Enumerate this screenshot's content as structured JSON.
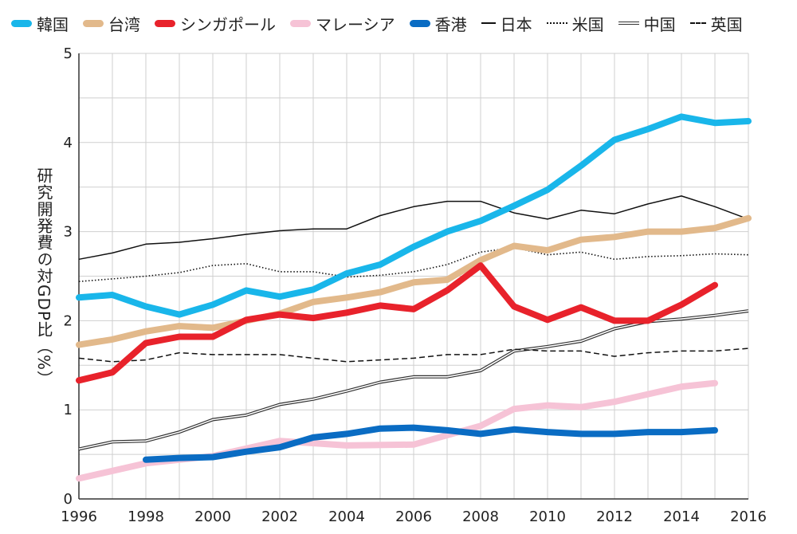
{
  "chart_data": {
    "type": "line",
    "title": "",
    "xlabel": "",
    "ylabel": "研究開発費の対GDP比（%）",
    "xlim": [
      1996,
      2016
    ],
    "ylim": [
      0,
      5
    ],
    "xticks": [
      1996,
      1998,
      2000,
      2002,
      2004,
      2006,
      2008,
      2010,
      2012,
      2014,
      2016
    ],
    "yticks": [
      0,
      1,
      2,
      3,
      4,
      5
    ],
    "grid": true,
    "legend_position": "top",
    "series": [
      {
        "name": "韓国",
        "color": "#19b6ea",
        "style": "thick",
        "x": [
          1996,
          1997,
          1998,
          1999,
          2000,
          2001,
          2002,
          2003,
          2004,
          2005,
          2006,
          2007,
          2008,
          2009,
          2010,
          2011,
          2012,
          2013,
          2014,
          2015,
          2016
        ],
        "y": [
          2.26,
          2.29,
          2.16,
          2.07,
          2.18,
          2.34,
          2.27,
          2.35,
          2.53,
          2.63,
          2.83,
          3.0,
          3.12,
          3.29,
          3.47,
          3.74,
          4.03,
          4.15,
          4.29,
          4.22,
          4.24
        ]
      },
      {
        "name": "台湾",
        "color": "#e2b98b",
        "style": "thick",
        "x": [
          1996,
          1997,
          1998,
          1999,
          2000,
          2001,
          2002,
          2003,
          2004,
          2005,
          2006,
          2007,
          2008,
          2009,
          2010,
          2011,
          2012,
          2013,
          2014,
          2015,
          2016
        ],
        "y": [
          1.73,
          1.79,
          1.88,
          1.94,
          1.92,
          2.0,
          2.08,
          2.21,
          2.26,
          2.32,
          2.43,
          2.46,
          2.68,
          2.84,
          2.79,
          2.91,
          2.94,
          3.0,
          3.0,
          3.04,
          3.15
        ]
      },
      {
        "name": "シンガポール",
        "color": "#e8222b",
        "style": "thick",
        "x": [
          1996,
          1997,
          1998,
          1999,
          2000,
          2001,
          2002,
          2003,
          2004,
          2005,
          2006,
          2007,
          2008,
          2009,
          2010,
          2011,
          2012,
          2013,
          2014,
          2015
        ],
        "y": [
          1.33,
          1.42,
          1.75,
          1.82,
          1.82,
          2.01,
          2.07,
          2.03,
          2.09,
          2.17,
          2.13,
          2.34,
          2.62,
          2.16,
          2.01,
          2.15,
          2.0,
          2.0,
          2.18,
          2.4
        ]
      },
      {
        "name": "マレーシア",
        "color": "#f6c3d6",
        "style": "thick",
        "x": [
          1996,
          1998,
          2000,
          2002,
          2004,
          2006,
          2008,
          2009,
          2010,
          2011,
          2012,
          2014,
          2015
        ],
        "y": [
          0.23,
          0.4,
          0.48,
          0.65,
          0.6,
          0.61,
          0.82,
          1.01,
          1.05,
          1.03,
          1.09,
          1.26,
          1.3
        ]
      },
      {
        "name": "香港",
        "color": "#0a6cc3",
        "style": "thick",
        "x": [
          1998,
          1999,
          2000,
          2001,
          2002,
          2003,
          2004,
          2005,
          2006,
          2007,
          2008,
          2009,
          2010,
          2011,
          2012,
          2013,
          2014,
          2015
        ],
        "y": [
          0.44,
          0.46,
          0.47,
          0.53,
          0.58,
          0.69,
          0.73,
          0.79,
          0.8,
          0.77,
          0.73,
          0.78,
          0.75,
          0.73,
          0.73,
          0.75,
          0.75,
          0.77
        ]
      },
      {
        "name": "日本",
        "color": "#111111",
        "style": "solid",
        "x": [
          1996,
          1997,
          1998,
          1999,
          2000,
          2001,
          2002,
          2003,
          2004,
          2005,
          2006,
          2007,
          2008,
          2009,
          2010,
          2011,
          2012,
          2013,
          2014,
          2015,
          2016
        ],
        "y": [
          2.69,
          2.76,
          2.86,
          2.88,
          2.92,
          2.97,
          3.01,
          3.03,
          3.03,
          3.18,
          3.28,
          3.34,
          3.34,
          3.21,
          3.14,
          3.24,
          3.2,
          3.31,
          3.4,
          3.28,
          3.14
        ]
      },
      {
        "name": "米国",
        "color": "#111111",
        "style": "dotted",
        "x": [
          1996,
          1997,
          1998,
          1999,
          2000,
          2001,
          2002,
          2003,
          2004,
          2005,
          2006,
          2007,
          2008,
          2009,
          2010,
          2011,
          2012,
          2013,
          2014,
          2015,
          2016
        ],
        "y": [
          2.44,
          2.47,
          2.5,
          2.54,
          2.62,
          2.64,
          2.55,
          2.55,
          2.49,
          2.51,
          2.55,
          2.63,
          2.77,
          2.82,
          2.74,
          2.77,
          2.69,
          2.72,
          2.73,
          2.75,
          2.74
        ]
      },
      {
        "name": "中国",
        "color": "#333333",
        "style": "double",
        "x": [
          1996,
          1997,
          1998,
          1999,
          2000,
          2001,
          2002,
          2003,
          2004,
          2005,
          2006,
          2007,
          2008,
          2009,
          2010,
          2011,
          2012,
          2013,
          2014,
          2015,
          2016
        ],
        "y": [
          0.56,
          0.64,
          0.65,
          0.75,
          0.89,
          0.94,
          1.06,
          1.12,
          1.21,
          1.31,
          1.37,
          1.37,
          1.44,
          1.66,
          1.71,
          1.77,
          1.91,
          1.99,
          2.02,
          2.06,
          2.11
        ]
      },
      {
        "name": "英国",
        "color": "#111111",
        "style": "dashed",
        "x": [
          1996,
          1997,
          1998,
          1999,
          2000,
          2001,
          2002,
          2003,
          2004,
          2005,
          2006,
          2007,
          2008,
          2009,
          2010,
          2011,
          2012,
          2013,
          2014,
          2015,
          2016
        ],
        "y": [
          1.58,
          1.54,
          1.56,
          1.64,
          1.62,
          1.62,
          1.62,
          1.58,
          1.54,
          1.56,
          1.58,
          1.62,
          1.62,
          1.68,
          1.66,
          1.66,
          1.6,
          1.64,
          1.66,
          1.66,
          1.69
        ]
      }
    ]
  }
}
